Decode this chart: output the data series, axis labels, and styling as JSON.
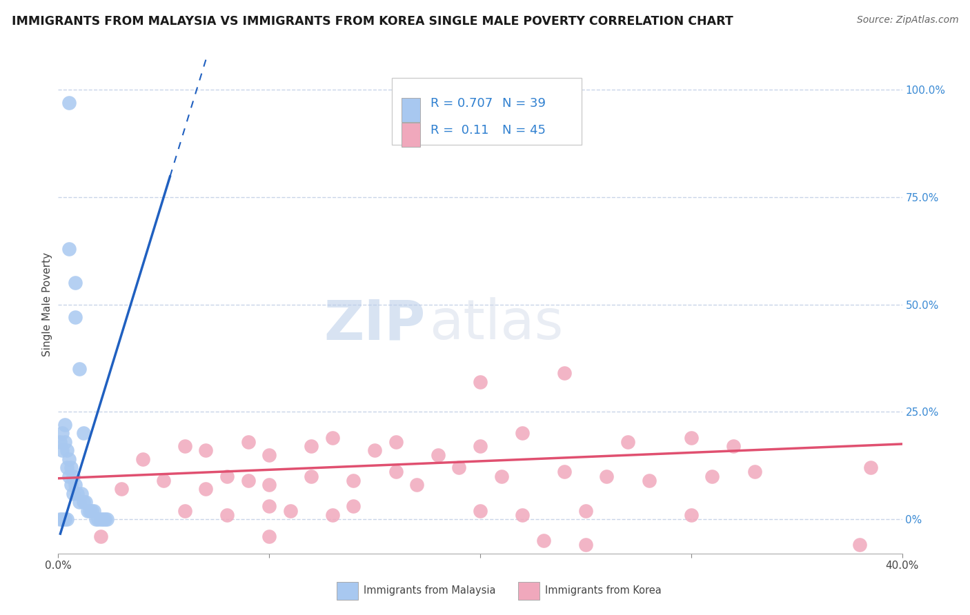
{
  "title": "IMMIGRANTS FROM MALAYSIA VS IMMIGRANTS FROM KOREA SINGLE MALE POVERTY CORRELATION CHART",
  "source": "Source: ZipAtlas.com",
  "ylabel": "Single Male Poverty",
  "xlim": [
    0.0,
    0.4
  ],
  "ylim": [
    -0.08,
    1.08
  ],
  "x_ticks": [
    0.0,
    0.1,
    0.2,
    0.3,
    0.4
  ],
  "x_tick_labels": [
    "0.0%",
    "",
    "",
    "",
    "40.0%"
  ],
  "y_ticks_right": [
    0.0,
    0.25,
    0.5,
    0.75,
    1.0
  ],
  "malaysia_color": "#a8c8f0",
  "korea_color": "#f0a8bc",
  "malaysia_R": 0.707,
  "malaysia_N": 39,
  "korea_R": 0.11,
  "korea_N": 45,
  "malaysia_line_color": "#2060c0",
  "korea_line_color": "#e05070",
  "watermark_zip": "ZIP",
  "watermark_atlas": "atlas",
  "background_color": "#ffffff",
  "grid_color": "#c8d4e8",
  "legend_color": "#3080d0",
  "legend_N_color": "#333333"
}
